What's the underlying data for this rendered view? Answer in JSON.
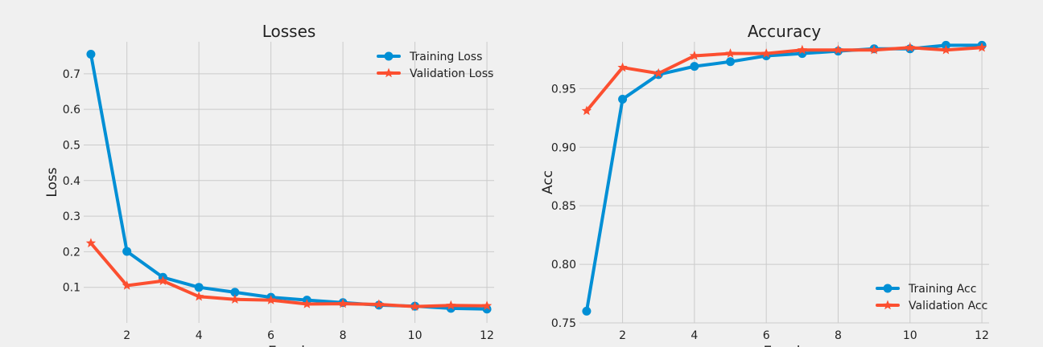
{
  "chart_data": [
    {
      "type": "line",
      "title": "Losses",
      "xlabel": "Epoch",
      "ylabel": "Loss",
      "x": [
        1,
        2,
        3,
        4,
        5,
        6,
        7,
        8,
        9,
        10,
        11,
        12
      ],
      "xlim": [
        0.8,
        12.2
      ],
      "ylim": [
        0.0,
        0.79
      ],
      "xticks": [
        2,
        4,
        6,
        8,
        10,
        12
      ],
      "yticks": [
        0.1,
        0.2,
        0.3,
        0.4,
        0.5,
        0.6,
        0.7
      ],
      "ytick_labels": [
        "0.1",
        "0.2",
        "0.3",
        "0.4",
        "0.5",
        "0.6",
        "0.7"
      ],
      "grid": true,
      "legend": "top-right",
      "series": [
        {
          "name": "Training Loss",
          "color": "#008fd5",
          "marker": "circle",
          "values": [
            0.755,
            0.201,
            0.128,
            0.1,
            0.086,
            0.072,
            0.064,
            0.057,
            0.05,
            0.047,
            0.041,
            0.039
          ]
        },
        {
          "name": "Validation Loss",
          "color": "#fc4f30",
          "marker": "star",
          "values": [
            0.224,
            0.105,
            0.118,
            0.074,
            0.066,
            0.064,
            0.053,
            0.054,
            0.052,
            0.046,
            0.049,
            0.048
          ]
        }
      ]
    },
    {
      "type": "line",
      "title": "Accuracy",
      "xlabel": "Epoch",
      "ylabel": "Acc",
      "x": [
        1,
        2,
        3,
        4,
        5,
        6,
        7,
        8,
        9,
        10,
        11,
        12
      ],
      "xlim": [
        0.8,
        12.2
      ],
      "ylim": [
        0.75,
        0.99
      ],
      "xticks": [
        2,
        4,
        6,
        8,
        10,
        12
      ],
      "yticks": [
        0.75,
        0.8,
        0.85,
        0.9,
        0.95
      ],
      "ytick_labels": [
        "0.75",
        "0.80",
        "0.85",
        "0.90",
        "0.95"
      ],
      "grid": true,
      "legend": "bottom-right",
      "series": [
        {
          "name": "Training Acc",
          "color": "#008fd5",
          "marker": "circle",
          "values": [
            0.76,
            0.941,
            0.962,
            0.969,
            0.973,
            0.978,
            0.98,
            0.982,
            0.984,
            0.984,
            0.987,
            0.987
          ]
        },
        {
          "name": "Validation Acc",
          "color": "#fc4f30",
          "marker": "star",
          "values": [
            0.931,
            0.968,
            0.963,
            0.978,
            0.98,
            0.98,
            0.983,
            0.983,
            0.983,
            0.985,
            0.983,
            0.985
          ]
        }
      ]
    }
  ]
}
